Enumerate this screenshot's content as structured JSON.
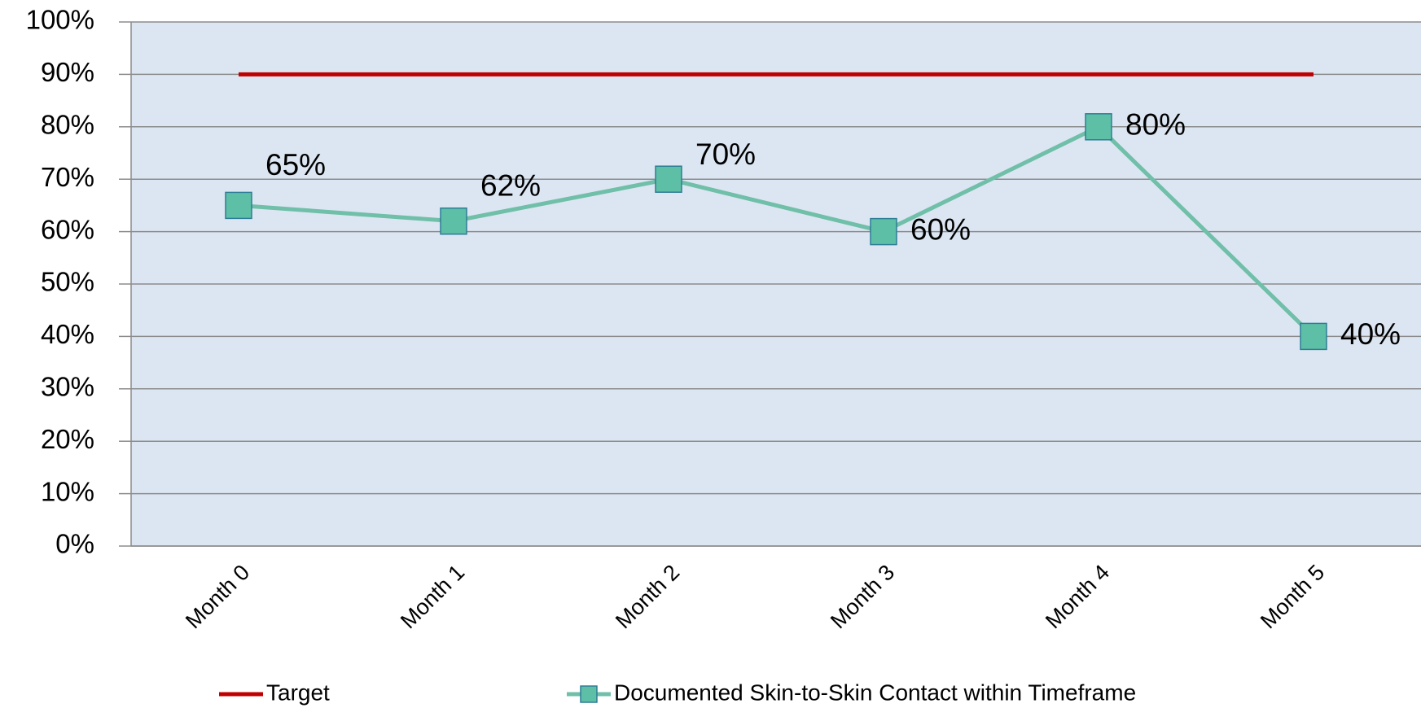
{
  "chart_data": {
    "type": "line",
    "categories": [
      "Month 0",
      "Month 1",
      "Month 2",
      "Month 3",
      "Month 4",
      "Month 5"
    ],
    "series": [
      {
        "name": "Target",
        "color": "#c00000",
        "values": [
          90,
          90,
          90,
          90,
          90,
          90
        ]
      },
      {
        "name": "Documented Skin-to-Skin Contact within Timeframe",
        "color": "#70bfa8",
        "marker": "square",
        "values": [
          65,
          62,
          70,
          60,
          80,
          40
        ],
        "value_labels": [
          "65%",
          "62%",
          "70%",
          "60%",
          "80%",
          "40%"
        ]
      }
    ],
    "ylim": [
      0,
      100
    ],
    "yticks": [
      {
        "value": 0,
        "label": "0%"
      },
      {
        "value": 10,
        "label": "10%"
      },
      {
        "value": 20,
        "label": "20%"
      },
      {
        "value": 30,
        "label": "30%"
      },
      {
        "value": 40,
        "label": "40%"
      },
      {
        "value": 50,
        "label": "50%"
      },
      {
        "value": 60,
        "label": "60%"
      },
      {
        "value": 70,
        "label": "70%"
      },
      {
        "value": 80,
        "label": "80%"
      },
      {
        "value": 90,
        "label": "90%"
      },
      {
        "value": 100,
        "label": "100%"
      }
    ],
    "grid": true,
    "legend": "bottom"
  }
}
